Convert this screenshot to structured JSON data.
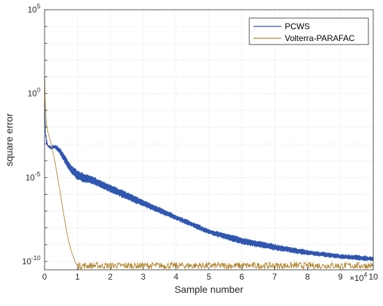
{
  "chart_data": {
    "type": "line",
    "xlabel": "Sample number",
    "ylabel": "square error",
    "x_multiplier_label": "×10",
    "x_multiplier_exponent": "4",
    "xlim": [
      0,
      100000
    ],
    "ylim_log10": [
      -10.5,
      5
    ],
    "y_scale": "log",
    "grid": true,
    "legend_position": "top-right",
    "x_ticks": [
      0,
      1,
      2,
      3,
      4,
      5,
      6,
      7,
      8,
      9,
      10
    ],
    "y_ticks": [
      {
        "base": "10",
        "exp": "5",
        "log10": 5
      },
      {
        "base": "10",
        "exp": "0",
        "log10": 0
      },
      {
        "base": "10",
        "exp": "-5",
        "log10": -5
      },
      {
        "base": "10",
        "exp": "-10",
        "log10": -10
      }
    ],
    "series": [
      {
        "name": "PCWS",
        "color": "#2f56b0",
        "band_log10": {
          "x": [
            0,
            200,
            500,
            1000,
            2000,
            3000,
            4000,
            5000,
            6000,
            7000,
            8000,
            9000,
            10000,
            12000,
            15000,
            20000,
            30000,
            40000,
            50000,
            60000,
            70000,
            80000,
            90000,
            95000,
            100000
          ],
          "y_high": [
            -0.5,
            -1.8,
            -2.6,
            -3.0,
            -3.1,
            -3.0,
            -3.1,
            -3.3,
            -3.6,
            -3.9,
            -4.2,
            -4.4,
            -4.55,
            -4.75,
            -4.95,
            -5.4,
            -6.3,
            -7.2,
            -8.05,
            -8.55,
            -8.95,
            -9.3,
            -9.55,
            -9.6,
            -9.7
          ],
          "y_low": [
            -1.0,
            -2.2,
            -3.0,
            -3.2,
            -3.35,
            -3.3,
            -3.45,
            -3.75,
            -4.1,
            -4.45,
            -4.75,
            -4.95,
            -5.15,
            -5.3,
            -5.45,
            -5.9,
            -6.75,
            -7.55,
            -8.4,
            -9.0,
            -9.35,
            -9.65,
            -9.85,
            -9.95,
            -10.0
          ]
        }
      },
      {
        "name": "Volterra-PARAFAC",
        "color": "#b0822b",
        "curve_log10": {
          "x": [
            0,
            200,
            500,
            1000,
            1500,
            2000,
            3000,
            4000,
            5000,
            6000,
            7000,
            8000,
            9000,
            9500,
            10000,
            11000,
            100000
          ],
          "y": [
            1.0,
            -0.5,
            -1.7,
            -2.3,
            -2.6,
            -3.0,
            -3.9,
            -5.0,
            -6.2,
            -7.4,
            -8.5,
            -9.3,
            -9.85,
            -10.1,
            -10.25,
            -10.25,
            -10.25
          ]
        },
        "noise_floor_log10": [
          -10.45,
          -10.05
        ]
      }
    ]
  }
}
